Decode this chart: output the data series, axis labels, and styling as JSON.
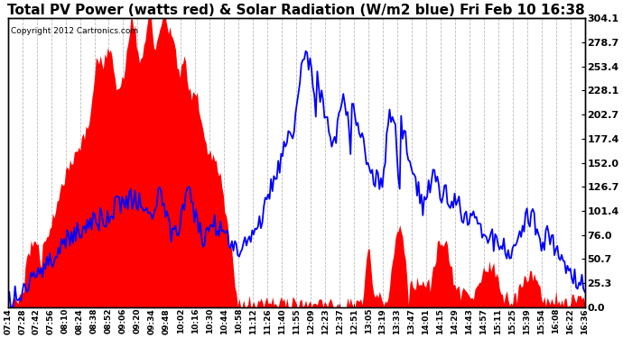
{
  "title": "Total PV Power (watts red) & Solar Radiation (W/m2 blue) Fri Feb 10 16:38",
  "copyright": "Copyright 2012 Cartronics.com",
  "y_right_ticks": [
    0.0,
    25.3,
    50.7,
    76.0,
    101.4,
    126.7,
    152.0,
    177.4,
    202.7,
    228.1,
    253.4,
    278.7,
    304.1
  ],
  "x_labels": [
    "07:14",
    "07:28",
    "07:42",
    "07:56",
    "08:10",
    "08:24",
    "08:38",
    "08:52",
    "09:06",
    "09:20",
    "09:34",
    "09:48",
    "10:02",
    "10:16",
    "10:30",
    "10:44",
    "10:58",
    "11:12",
    "11:26",
    "11:40",
    "11:55",
    "12:09",
    "12:23",
    "12:37",
    "12:51",
    "13:05",
    "13:19",
    "13:33",
    "13:47",
    "14:01",
    "14:15",
    "14:29",
    "14:43",
    "14:57",
    "15:11",
    "15:25",
    "15:39",
    "15:54",
    "16:08",
    "16:22",
    "16:36"
  ],
  "bg_color": "#ffffff",
  "grid_color": "#bbbbbb",
  "red_color": "#ff0000",
  "blue_color": "#0000ff",
  "title_fontsize": 11,
  "ymax": 304.1,
  "ymin": 0.0
}
